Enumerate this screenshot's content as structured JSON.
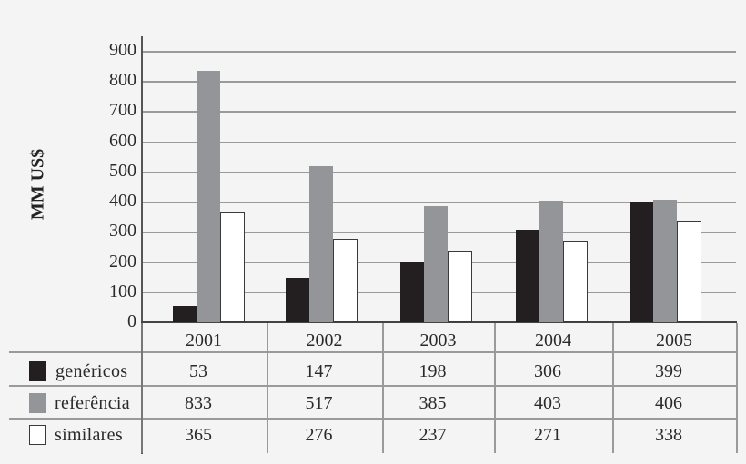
{
  "chart_data": {
    "type": "bar",
    "title": "",
    "xlabel": "",
    "ylabel": "MM US$",
    "ylim": [
      0,
      900
    ],
    "yticks": [
      0,
      100,
      200,
      300,
      400,
      500,
      600,
      700,
      800,
      900
    ],
    "grid": true,
    "legend_position": "table-below",
    "categories": [
      "2001",
      "2002",
      "2003",
      "2004",
      "2005"
    ],
    "series": [
      {
        "name": "genéricos",
        "color": "#231f20",
        "values": [
          53,
          147,
          198,
          306,
          399
        ]
      },
      {
        "name": "referência",
        "color": "#939598",
        "values": [
          833,
          517,
          385,
          403,
          406
        ]
      },
      {
        "name": "similares",
        "color": "#ffffff",
        "values": [
          365,
          276,
          237,
          271,
          338
        ]
      }
    ]
  },
  "axis": {
    "ylabel": "MM US$",
    "ticks": [
      "0",
      "100",
      "200",
      "300",
      "400",
      "500",
      "600",
      "700",
      "800",
      "900"
    ]
  },
  "table": {
    "years": [
      "2001",
      "2002",
      "2003",
      "2004",
      "2005"
    ],
    "rows": [
      {
        "label": "genéricos",
        "values": [
          "53",
          "147",
          "198",
          "306",
          "399"
        ]
      },
      {
        "label": "referência",
        "values": [
          "833",
          "517",
          "385",
          "403",
          "406"
        ]
      },
      {
        "label": "similares",
        "values": [
          "365",
          "276",
          "237",
          "271",
          "338"
        ]
      }
    ]
  }
}
